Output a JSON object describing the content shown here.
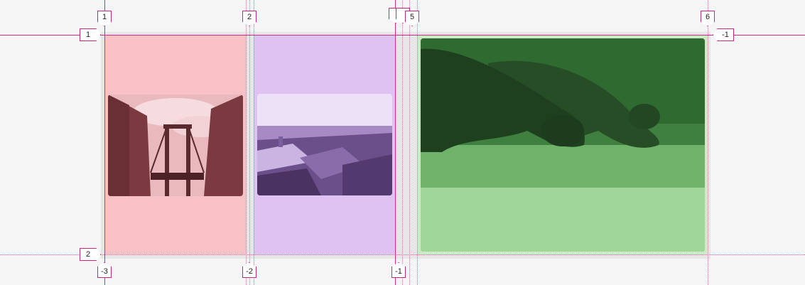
{
  "grid_overlay": {
    "column_labels_top": [
      "1",
      "2",
      "",
      "",
      "5",
      "6"
    ],
    "column_labels_bottom": [
      "-3",
      "-2",
      "-1"
    ],
    "row_labels_left": [
      "1",
      "2"
    ],
    "row_labels_right": [
      "-1"
    ],
    "line_color": "#d12c8a"
  },
  "grid_items": [
    {
      "name": "Brooklyn bridge photo",
      "tint": "#f8c1c6"
    },
    {
      "name": "City rooftops photo",
      "tint": "#dfc2f2"
    },
    {
      "name": "Dogs on grass photo",
      "tint": "#cfe8c6"
    }
  ]
}
